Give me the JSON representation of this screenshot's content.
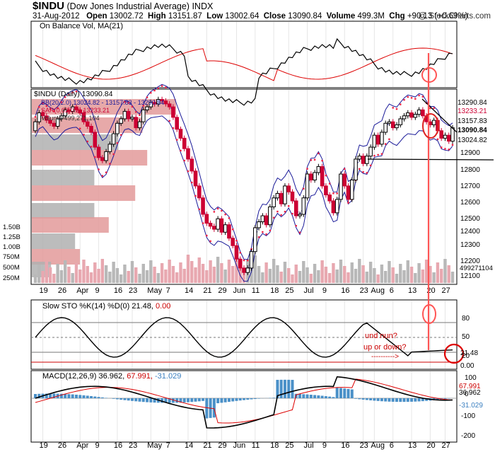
{
  "header": {
    "symbol": "$INDU",
    "name": "(Dow Jones Industrial Average)",
    "exchange": "INDX",
    "date": "31-Aug-2012",
    "open_label": "Open",
    "open": "13002.72",
    "high_label": "High",
    "high": "13151.87",
    "low_label": "Low",
    "low": "13002.64",
    "close_label": "Close",
    "close": "13090.84",
    "volume_label": "Volume",
    "volume": "499.3M",
    "chg_label": "Chg",
    "chg": "+90.13 (+0.69%)",
    "brand": "@ StockCharts.com"
  },
  "colors": {
    "up": "#000000",
    "down": "#cc0033",
    "bb": "#1a1a99",
    "sar": "#ee2244",
    "vol_up": "#b8b8b8",
    "vol_down": "#e8a8b0",
    "vbp_gray": "#b0b0b0",
    "vbp_red": "#e39a9a",
    "ma": "#dd0000",
    "hist": "#4a90c8",
    "annot": "#ff5555",
    "annot_text": "#cc0000"
  },
  "obv": {
    "legend": "On Balance Vol, MA(21)"
  },
  "price": {
    "legend1": "$INDU (Daily) 13090.84",
    "legend2": "BB(20,2.0) 13024.82 - 13157.83 - 13290.84",
    "legend3": "SAR(0.02,0.2) 13233.21",
    "legend4": "Volume 499,271,104",
    "right_tags": [
      "13290.84",
      "13233.21",
      "13157.83",
      "13090.84",
      "13024.82"
    ],
    "vol_tag": "499271104",
    "yaxis": [
      "12900",
      "12800",
      "12700",
      "12600",
      "12500",
      "12400",
      "12300",
      "12200",
      "12100"
    ],
    "vol_axis": [
      "1.50B",
      "1.25B",
      "1.00B",
      "750M",
      "500M",
      "250M"
    ]
  },
  "sto": {
    "legend_main": "Slow STO %K(14) %D(0) 21.48,",
    "legend_val": "0.00",
    "yaxis": [
      "80",
      "50",
      "20"
    ],
    "tag1": "21.48",
    "tag2": "0.00",
    "annot1": "und nun?",
    "annot2": "up or down?",
    "annot3": "---------->"
  },
  "macd": {
    "legend_main": "MACD(12,26,9) 36.962,",
    "legend_sig": "67.991,",
    "legend_hist": "-31.029",
    "yaxis": [
      "100",
      "0",
      "-100",
      "-200"
    ],
    "tags": [
      "67.991",
      "36.962",
      "-31.029"
    ]
  },
  "xaxis": [
    "19",
    "26",
    "Apr",
    "9",
    "16",
    "23",
    "May",
    "7",
    "14",
    "21",
    "29",
    "Jun",
    "11",
    "18",
    "25",
    "Jul",
    "9",
    "16",
    "23",
    "Aug",
    "6",
    "13",
    "20",
    "27"
  ],
  "chart_data": {
    "type": "candlestick",
    "title": "$INDU (Dow Jones Industrial Average) Daily",
    "ylim": [
      12050,
      13330
    ],
    "candles": [
      [
        13070,
        13130
      ],
      [
        13130,
        13190
      ],
      [
        13190,
        13170
      ],
      [
        13170,
        13140
      ],
      [
        13140,
        13120
      ],
      [
        13120,
        13100
      ],
      [
        13100,
        13150
      ],
      [
        13150,
        13170
      ],
      [
        13170,
        13210
      ],
      [
        13210,
        13200
      ],
      [
        13200,
        13230
      ],
      [
        13230,
        13210
      ],
      [
        13210,
        13190
      ],
      [
        13190,
        13130
      ],
      [
        13130,
        13100
      ],
      [
        13100,
        13060
      ],
      [
        13060,
        12960
      ],
      [
        12960,
        12890
      ],
      [
        12890,
        12870
      ],
      [
        12870,
        12930
      ],
      [
        12930,
        12980
      ],
      [
        12980,
        13050
      ],
      [
        13050,
        13120
      ],
      [
        13120,
        13150
      ],
      [
        13150,
        13200
      ],
      [
        13200,
        13150
      ],
      [
        13150,
        13160
      ],
      [
        13160,
        13090
      ],
      [
        13090,
        13130
      ],
      [
        13130,
        13210
      ],
      [
        13210,
        13230
      ],
      [
        13230,
        13260
      ],
      [
        13260,
        13250
      ],
      [
        13250,
        13280
      ],
      [
        13280,
        13270
      ],
      [
        13270,
        13250
      ],
      [
        13250,
        13230
      ],
      [
        13230,
        13160
      ],
      [
        13160,
        13080
      ],
      [
        13080,
        13020
      ],
      [
        13020,
        12950
      ],
      [
        12950,
        12880
      ],
      [
        12880,
        12800
      ],
      [
        12800,
        12700
      ],
      [
        12700,
        12620
      ],
      [
        12620,
        12510
      ],
      [
        12510,
        12450
      ],
      [
        12450,
        12430
      ],
      [
        12430,
        12410
      ],
      [
        12410,
        12480
      ],
      [
        12480,
        12390
      ],
      [
        12390,
        12440
      ],
      [
        12440,
        12350
      ],
      [
        12350,
        12300
      ],
      [
        12300,
        12210
      ],
      [
        12210,
        12150
      ],
      [
        12150,
        12120
      ],
      [
        12120,
        12150
      ],
      [
        12150,
        12260
      ],
      [
        12260,
        12420
      ],
      [
        12420,
        12460
      ],
      [
        12460,
        12500
      ],
      [
        12500,
        12440
      ],
      [
        12440,
        12560
      ],
      [
        12560,
        12620
      ],
      [
        12620,
        12650
      ],
      [
        12650,
        12580
      ],
      [
        12580,
        12700
      ],
      [
        12700,
        12660
      ],
      [
        12660,
        12600
      ],
      [
        12600,
        12500
      ],
      [
        12500,
        12510
      ],
      [
        12510,
        12620
      ],
      [
        12620,
        12780
      ],
      [
        12780,
        12740
      ],
      [
        12740,
        12790
      ],
      [
        12790,
        12830
      ],
      [
        12830,
        12700
      ],
      [
        12700,
        12640
      ],
      [
        12640,
        12600
      ],
      [
        12600,
        12520
      ],
      [
        12520,
        12610
      ],
      [
        12610,
        12780
      ],
      [
        12780,
        12700
      ],
      [
        12700,
        12610
      ],
      [
        12610,
        12740
      ],
      [
        12740,
        12880
      ],
      [
        12880,
        12900
      ],
      [
        12900,
        12850
      ],
      [
        12850,
        12900
      ],
      [
        12900,
        12960
      ],
      [
        12960,
        13040
      ],
      [
        13040,
        12980
      ],
      [
        12980,
        13060
      ],
      [
        13060,
        13120
      ],
      [
        13120,
        13130
      ],
      [
        13130,
        13090
      ],
      [
        13090,
        13110
      ],
      [
        13110,
        13150
      ],
      [
        13150,
        13170
      ],
      [
        13170,
        13190
      ],
      [
        13190,
        13160
      ],
      [
        13160,
        13180
      ],
      [
        13180,
        13210
      ],
      [
        13210,
        13170
      ],
      [
        13170,
        13130
      ],
      [
        13130,
        13110
      ],
      [
        13110,
        13140
      ],
      [
        13140,
        13070
      ],
      [
        13070,
        13020
      ],
      [
        13020,
        13040
      ],
      [
        13040,
        13000
      ],
      [
        13000,
        13090
      ]
    ],
    "bollinger": {
      "upper": 13290.84,
      "middle": 13157.83,
      "lower": 13024.82
    },
    "sar": 13233.21,
    "volume": 499271104,
    "stochastic": {
      "k": 21.48,
      "d": 0.0,
      "levels": [
        80,
        50,
        20
      ]
    },
    "macd": {
      "macd": 36.962,
      "signal": 67.991,
      "histogram": -31.029
    }
  }
}
